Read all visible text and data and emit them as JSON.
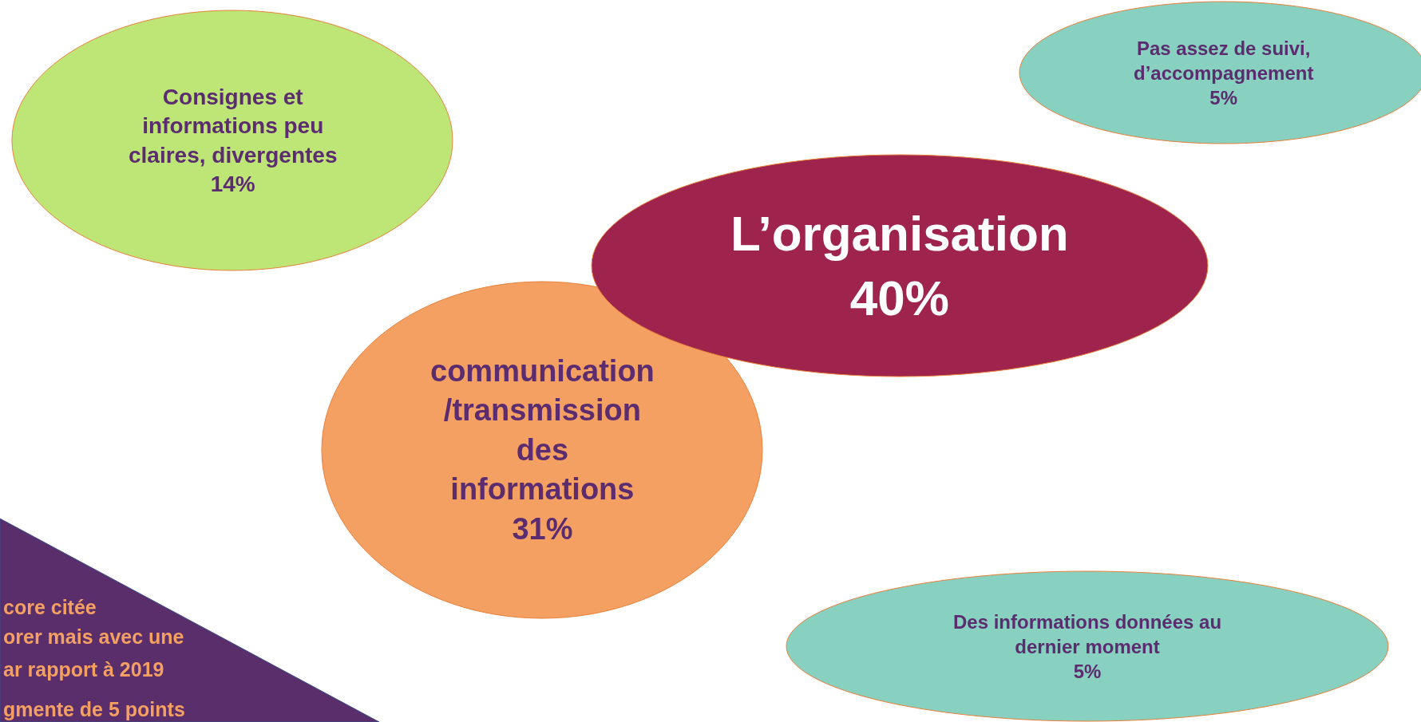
{
  "chart_data": {
    "type": "other",
    "categories": [
      "Consignes et\ninformations peu\nclaires, divergentes",
      "Pas assez de suivi,\nd’accompagnement",
      "L’organisation",
      "communication\n/transmission\ndes\ninformations",
      "Des informations données au\ndernier moment"
    ],
    "values": [
      14,
      5,
      40,
      31,
      5
    ],
    "value_labels": [
      "14%",
      "5%",
      "40%",
      "31%",
      "5%"
    ],
    "colors": [
      "#bee676",
      "#88d0bf",
      "#9e244e",
      "#f4a063",
      "#88d0bf"
    ],
    "annotations": [
      "core citée",
      "orer mais avec une",
      "ar rapport à 2019",
      "gmente de 5 points"
    ]
  }
}
